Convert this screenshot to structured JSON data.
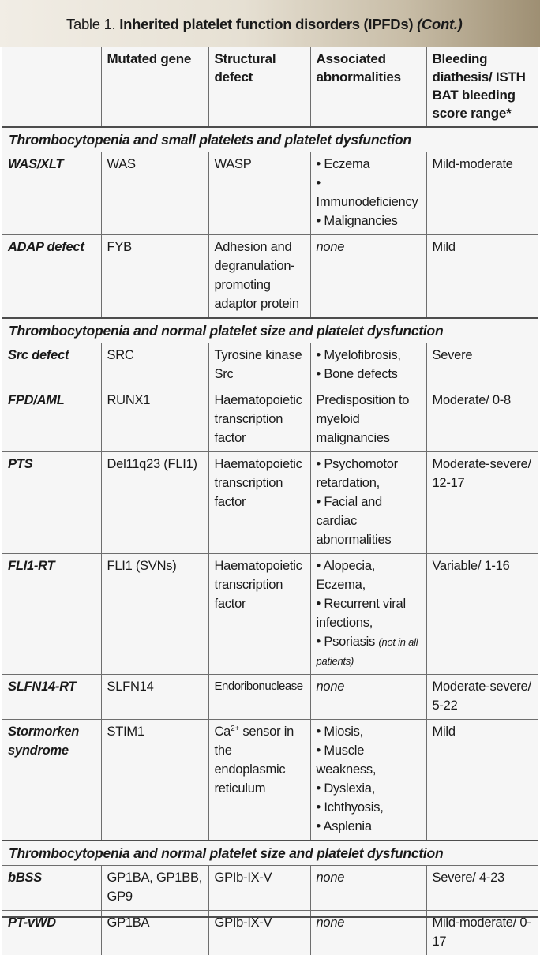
{
  "title": {
    "prefix": "Table 1. ",
    "main": "Inherited platelet function disorders (IPFDs)",
    "cont": "(Cont.)"
  },
  "headers": [
    "",
    "Mutated gene",
    "Structural defect",
    "Associated abnormalities",
    "Bleeding diathesis/ ISTH BAT bleeding score range*"
  ],
  "sections": [
    "Thrombocytopenia and small platelets and platelet dysfunction",
    "Thrombocytopenia and normal platelet size and platelet dysfunction",
    "Thrombocytopenia and normal platelet size and platelet dysfunction"
  ],
  "rows": [
    {
      "name": "WAS/XLT",
      "gene": "WAS",
      "defect": "WASP",
      "abn": [
        "• Eczema",
        "• Immunodeficiency",
        "• Malignancies"
      ],
      "bleeding": "Mild-moderate"
    },
    {
      "name": "ADAP defect",
      "gene": "FYB",
      "defect": "Adhesion and degranulation-promoting adaptor protein",
      "abn": [
        "none"
      ],
      "bleeding": "Mild"
    },
    {
      "name": "Src defect",
      "gene": "SRC",
      "defect": "Tyrosine kinase Src",
      "abn": [
        "• Myelofibrosis,",
        "• Bone defects"
      ],
      "bleeding": "Severe"
    },
    {
      "name": "FPD/AML",
      "gene": "RUNX1",
      "defect": "Haematopoietic transcription factor",
      "abn": [
        "Predisposition to myeloid malignancies"
      ],
      "bleeding": "Moderate/ 0-8"
    },
    {
      "name": "PTS",
      "gene": "Del11q23 (FLI1)",
      "defect": "Haematopoietic transcription factor",
      "abn": [
        "• Psychomotor retardation,",
        "• Facial and cardiac abnormalities"
      ],
      "bleeding": "Moderate-severe/ 12-17"
    },
    {
      "name": "FLI1-RT",
      "gene": "FLI1 (SVNs)",
      "defect": "Haematopoietic transcription factor",
      "abn": [
        "• Alopecia, Eczema,",
        "• Recurrent viral infections,",
        "• Psoriasis"
      ],
      "abn_note": "(not in all patients)",
      "bleeding": "Variable/ 1-16"
    },
    {
      "name": "SLFN14-RT",
      "gene": "SLFN14",
      "defect": "Endoribonuclease",
      "abn": [
        "none"
      ],
      "bleeding": "Moderate-severe/ 5-22"
    },
    {
      "name": "Stormorken syndrome",
      "gene": "STIM1",
      "defect_ca": "Ca",
      "defect_sup": "2+",
      "defect": " sensor in the endoplasmic reticulum",
      "abn": [
        "• Miosis,",
        "• Muscle weakness,",
        "• Dyslexia,",
        "• Ichthyosis,",
        "• Asplenia"
      ],
      "bleeding": "Mild"
    },
    {
      "name": "bBSS",
      "gene": "GP1BA, GP1BB, GP9",
      "defect": "GPIb-IX-V",
      "abn": [
        "none"
      ],
      "bleeding": "Severe/ 4-23"
    },
    {
      "name": "PT-vWD",
      "gene": "GP1BA",
      "defect": "GPIb-IX-V",
      "abn": [
        "none"
      ],
      "bleeding": "Mild-moderate/ 0-17"
    }
  ]
}
